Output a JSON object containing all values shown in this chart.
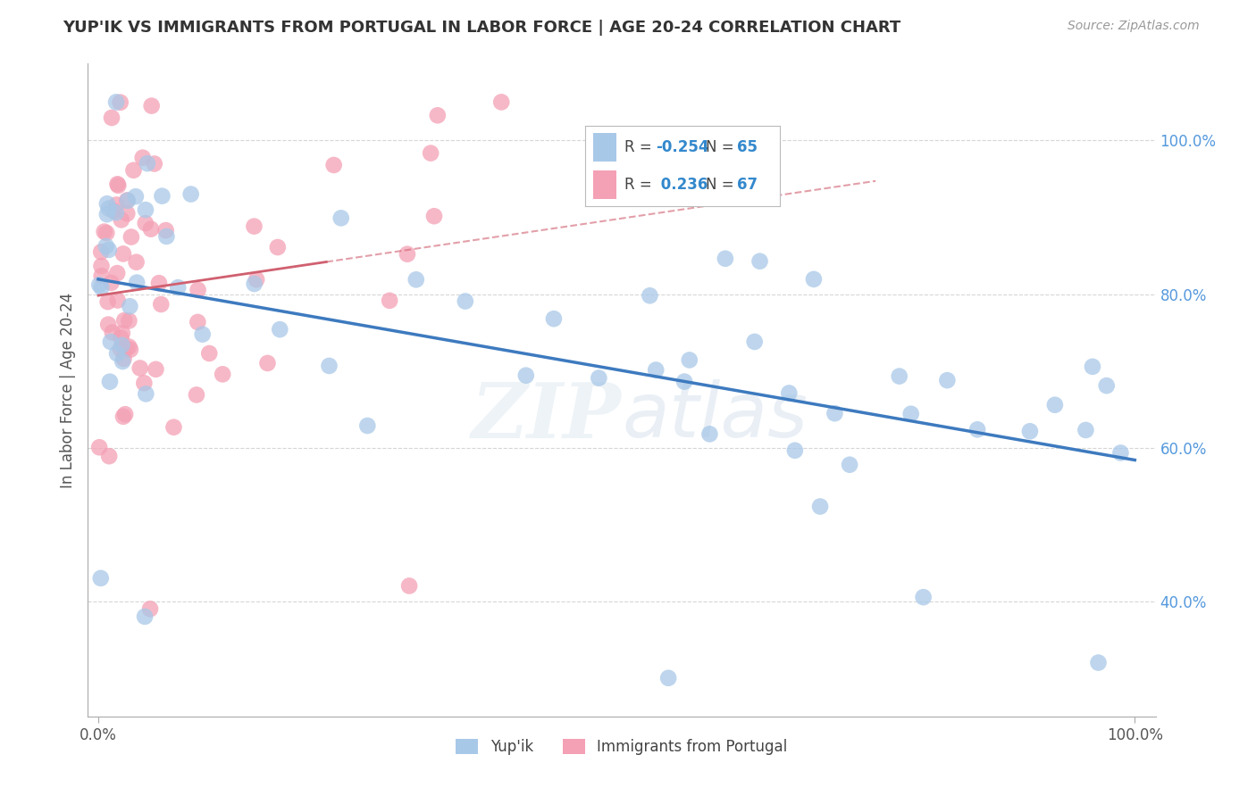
{
  "title": "YUP'IK VS IMMIGRANTS FROM PORTUGAL IN LABOR FORCE | AGE 20-24 CORRELATION CHART",
  "source": "Source: ZipAtlas.com",
  "ylabel": "In Labor Force | Age 20-24",
  "blue_color": "#a8c8e8",
  "pink_color": "#f4a0b5",
  "blue_line_color": "#3d7abf",
  "pink_line_color": "#d06070",
  "background_color": "#ffffff",
  "grid_color": "#cccccc",
  "watermark_zip": "ZIP",
  "watermark_atlas": "atlas",
  "r_blue": -0.254,
  "n_blue": 65,
  "r_pink": 0.236,
  "n_pink": 67
}
